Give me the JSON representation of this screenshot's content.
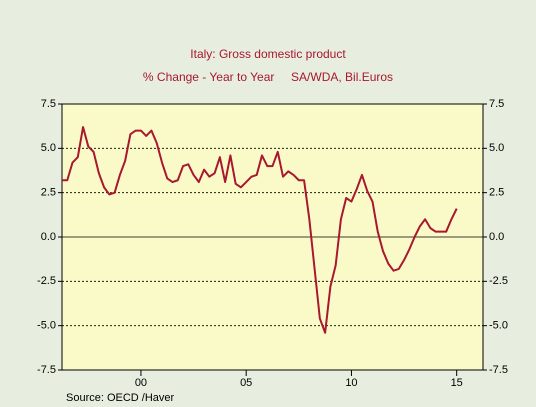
{
  "chart_data": {
    "type": "line",
    "title": "Italy: Gross domestic product",
    "subtitle": "% Change - Year to Year     SA/WDA, Bil.Euros",
    "source": "Source:  OECD /Haver",
    "x": [
      1996.25,
      1996.5,
      1996.75,
      1997,
      1997.25,
      1997.5,
      1997.75,
      1998,
      1998.25,
      1998.5,
      1998.75,
      1999,
      1999.25,
      1999.5,
      1999.75,
      2000,
      2000.25,
      2000.5,
      2000.75,
      2001,
      2001.25,
      2001.5,
      2001.75,
      2002,
      2002.25,
      2002.5,
      2002.75,
      2003,
      2003.25,
      2003.5,
      2003.75,
      2004,
      2004.25,
      2004.5,
      2004.75,
      2005,
      2005.25,
      2005.5,
      2005.75,
      2006,
      2006.25,
      2006.5,
      2006.75,
      2007,
      2007.25,
      2007.5,
      2007.75,
      2008,
      2008.25,
      2008.5,
      2008.75,
      2009,
      2009.25,
      2009.5,
      2009.75,
      2010,
      2010.25,
      2010.5,
      2010.75,
      2011,
      2011.25,
      2011.5,
      2011.75,
      2012,
      2012.25,
      2012.5,
      2012.75,
      2013,
      2013.25,
      2013.5,
      2013.75,
      2014,
      2014.25,
      2014.5,
      2014.75,
      2015
    ],
    "series": [
      {
        "name": "Italy GDP",
        "color": "#a8182e",
        "values": [
          3.2,
          3.2,
          4.2,
          4.5,
          6.2,
          5.1,
          4.8,
          3.6,
          2.8,
          2.4,
          2.5,
          3.5,
          4.3,
          5.8,
          6.0,
          6.0,
          5.7,
          6.0,
          5.3,
          4.2,
          3.3,
          3.1,
          3.2,
          4.0,
          4.1,
          3.5,
          3.1,
          3.8,
          3.4,
          3.6,
          4.5,
          3.1,
          4.6,
          3.0,
          2.8,
          3.1,
          3.4,
          3.5,
          4.6,
          4.0,
          4.0,
          4.8,
          3.4,
          3.7,
          3.5,
          3.2,
          3.2,
          1.0,
          -1.8,
          -4.6,
          -5.4,
          -2.8,
          -1.6,
          1.0,
          2.2,
          2.0,
          2.7,
          3.5,
          2.6,
          2.0,
          0.3,
          -0.8,
          -1.5,
          -1.9,
          -1.8,
          -1.3,
          -0.7,
          0.0,
          0.6,
          1.0,
          0.5,
          0.3,
          0.3,
          0.3,
          1.0,
          1.6
        ]
      }
    ],
    "xlim": [
      1996.25,
      2016.25
    ],
    "xticks": [
      {
        "value": 2000,
        "label": "00"
      },
      {
        "value": 2005,
        "label": "05"
      },
      {
        "value": 2010,
        "label": "10"
      },
      {
        "value": 2015,
        "label": "15"
      }
    ],
    "ylim": [
      -7.5,
      7.5
    ],
    "yticks": [
      7.5,
      {
        "value": 5,
        "label": "5.0"
      },
      2.5,
      {
        "value": 0,
        "label": "0.0"
      },
      -2.5,
      {
        "value": -5,
        "label": "-5.0"
      },
      -7.5
    ],
    "grid": true
  }
}
